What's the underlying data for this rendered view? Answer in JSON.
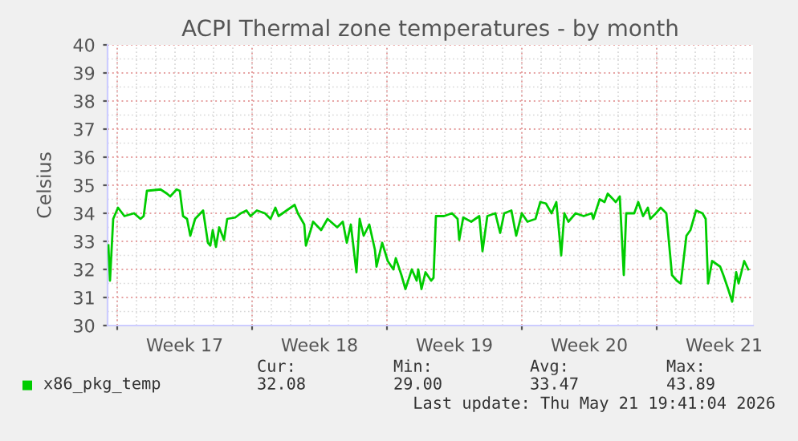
{
  "chart_data": {
    "type": "line",
    "title": "ACPI Thermal zone temperatures - by month",
    "ylabel": "Celsius",
    "x": [
      "2026-04-19T13:00",
      "2026-04-19T15:00",
      "2026-04-19T19:00",
      "2026-04-20T01:00",
      "2026-04-20T09:00",
      "2026-04-20T21:00",
      "2026-04-21T05:00",
      "2026-04-21T09:00",
      "2026-04-21T13:00",
      "2026-04-22T06:00",
      "2026-04-22T14:00",
      "2026-04-22T18:00",
      "2026-04-23T02:00",
      "2026-04-23T06:00",
      "2026-04-23T10:00",
      "2026-04-23T15:00",
      "2026-04-23T19:00",
      "2026-04-24T01:00",
      "2026-04-24T11:00",
      "2026-04-24T17:00",
      "2026-04-24T20:00",
      "2026-04-24T23:00",
      "2026-04-25T03:00",
      "2026-04-25T07:00",
      "2026-04-25T13:00",
      "2026-04-25T17:00",
      "2026-04-26T03:00",
      "2026-04-26T10:00",
      "2026-04-26T17:00",
      "2026-04-26T22:00",
      "2026-04-27T06:00",
      "2026-04-27T16:00",
      "2026-04-27T23:00",
      "2026-04-28T05:00",
      "2026-04-28T09:00",
      "2026-04-29T05:00",
      "2026-04-29T09:00",
      "2026-04-29T17:00",
      "2026-04-29T19:00",
      "2026-04-30T01:00",
      "2026-04-30T04:00",
      "2026-04-30T14:00",
      "2026-04-30T22:00",
      "2026-05-01T10:00",
      "2026-05-01T17:00",
      "2026-05-01T22:00",
      "2026-05-02T03:00",
      "2026-05-02T10:00",
      "2026-05-02T14:00",
      "2026-05-02T19:00",
      "2026-05-03T02:00",
      "2026-05-03T09:00",
      "2026-05-03T11:00",
      "2026-05-03T18:00",
      "2026-05-04T01:00",
      "2026-05-04T08:00",
      "2026-05-04T11:00",
      "2026-05-04T18:00",
      "2026-05-04T23:00",
      "2026-05-05T07:00",
      "2026-05-05T13:00",
      "2026-05-05T15:00",
      "2026-05-05T19:00",
      "2026-05-06T00:00",
      "2026-05-06T07:00",
      "2026-05-06T10:00",
      "2026-05-06T13:00",
      "2026-05-06T23:00",
      "2026-05-07T09:00",
      "2026-05-07T16:00",
      "2026-05-07T18:00",
      "2026-05-07T23:00",
      "2026-05-08T09:00",
      "2026-05-08T19:00",
      "2026-05-08T23:00",
      "2026-05-09T05:00",
      "2026-05-09T15:00",
      "2026-05-09T21:00",
      "2026-05-10T02:00",
      "2026-05-10T11:00",
      "2026-05-10T17:00",
      "2026-05-11T00:00",
      "2026-05-11T07:00",
      "2026-05-11T17:00",
      "2026-05-11T23:00",
      "2026-05-12T06:00",
      "2026-05-12T13:00",
      "2026-05-12T19:00",
      "2026-05-13T01:00",
      "2026-05-13T05:00",
      "2026-05-13T10:00",
      "2026-05-13T19:00",
      "2026-05-14T05:00",
      "2026-05-14T15:00",
      "2026-05-14T17:00",
      "2026-05-15T01:00",
      "2026-05-15T07:00",
      "2026-05-15T11:00",
      "2026-05-15T21:00",
      "2026-05-16T02:00",
      "2026-05-16T07:00",
      "2026-05-16T10:00",
      "2026-05-16T20:00",
      "2026-05-17T01:00",
      "2026-05-17T07:00",
      "2026-05-17T13:00",
      "2026-05-17T16:00",
      "2026-05-17T23:00",
      "2026-05-18T05:00",
      "2026-05-18T12:00",
      "2026-05-18T19:00",
      "2026-05-19T01:00",
      "2026-05-19T06:00",
      "2026-05-19T13:00",
      "2026-05-19T18:00",
      "2026-05-20T01:00",
      "2026-05-20T09:00",
      "2026-05-20T13:00",
      "2026-05-20T16:00",
      "2026-05-20T21:00",
      "2026-05-21T07:00",
      "2026-05-21T11:00",
      "2026-05-21T17:00",
      "2026-05-21T22:00",
      "2026-05-22T03:00",
      "2026-05-22T06:00",
      "2026-05-22T13:00",
      "2026-05-22T18:00"
    ],
    "series": [
      {
        "name": "x86_pkg_temp",
        "color": "#00cc00",
        "values": [
          32.86,
          31.6,
          33.8,
          34.2,
          33.9,
          34.0,
          33.8,
          33.9,
          34.8,
          34.85,
          34.7,
          34.6,
          34.85,
          34.8,
          33.9,
          33.8,
          33.2,
          33.8,
          34.1,
          32.95,
          32.85,
          33.4,
          32.8,
          33.5,
          33.05,
          33.8,
          33.85,
          34.0,
          34.1,
          33.9,
          34.1,
          34.0,
          33.8,
          34.2,
          33.9,
          34.3,
          34.0,
          33.6,
          32.85,
          33.4,
          33.7,
          33.4,
          33.8,
          33.5,
          33.7,
          32.95,
          33.6,
          31.9,
          33.8,
          33.2,
          33.6,
          32.7,
          32.1,
          32.95,
          32.3,
          32.0,
          32.4,
          31.8,
          31.3,
          32.0,
          31.6,
          32.0,
          31.3,
          31.9,
          31.6,
          31.7,
          33.9,
          33.9,
          34.0,
          33.8,
          33.05,
          33.85,
          33.7,
          33.9,
          32.65,
          33.9,
          34.0,
          33.3,
          34.0,
          34.1,
          33.2,
          34.0,
          33.7,
          33.8,
          34.4,
          34.35,
          34.0,
          34.4,
          32.5,
          34.0,
          33.7,
          34.0,
          33.9,
          34.0,
          33.8,
          34.5,
          34.4,
          34.7,
          34.4,
          34.6,
          31.8,
          34.0,
          34.0,
          34.4,
          33.9,
          34.2,
          33.8,
          34.0,
          34.2,
          34.0,
          31.8,
          31.6,
          31.5,
          33.2,
          33.4,
          34.1,
          34.0,
          33.8,
          31.5,
          32.3,
          32.1,
          31.8,
          31.3,
          30.85,
          31.9,
          31.5,
          32.3,
          32.0
        ]
      }
    ],
    "xlim": [
      "2026-04-19T12:00",
      "2026-05-23T00:00"
    ],
    "xticks": [
      {
        "value": "2026-04-20T00:00",
        "label": null
      },
      {
        "value": "2026-04-23T12:00",
        "label": "Week 17"
      },
      {
        "value": "2026-04-27T00:00",
        "label": null
      },
      {
        "value": "2026-04-30T12:00",
        "label": "Week 18"
      },
      {
        "value": "2026-05-04T00:00",
        "label": null
      },
      {
        "value": "2026-05-07T12:00",
        "label": "Week 19"
      },
      {
        "value": "2026-05-11T00:00",
        "label": null
      },
      {
        "value": "2026-05-14T12:00",
        "label": "Week 20"
      },
      {
        "value": "2026-05-18T00:00",
        "label": null
      },
      {
        "value": "2026-05-21T12:00",
        "label": "Week 21"
      }
    ],
    "ylim": [
      30,
      40
    ],
    "yticks": [
      30,
      31,
      32,
      33,
      34,
      35,
      36,
      37,
      38,
      39,
      40
    ],
    "grid": true,
    "legend": "bottom",
    "line_style": "solid",
    "marker": "none",
    "annotations": [
      "Cur:",
      "Min:",
      "Avg:",
      "Max:",
      "32.08",
      "29.00",
      "33.47",
      "43.89",
      "Last update: Thu May 21 19:41:04 2026"
    ]
  }
}
